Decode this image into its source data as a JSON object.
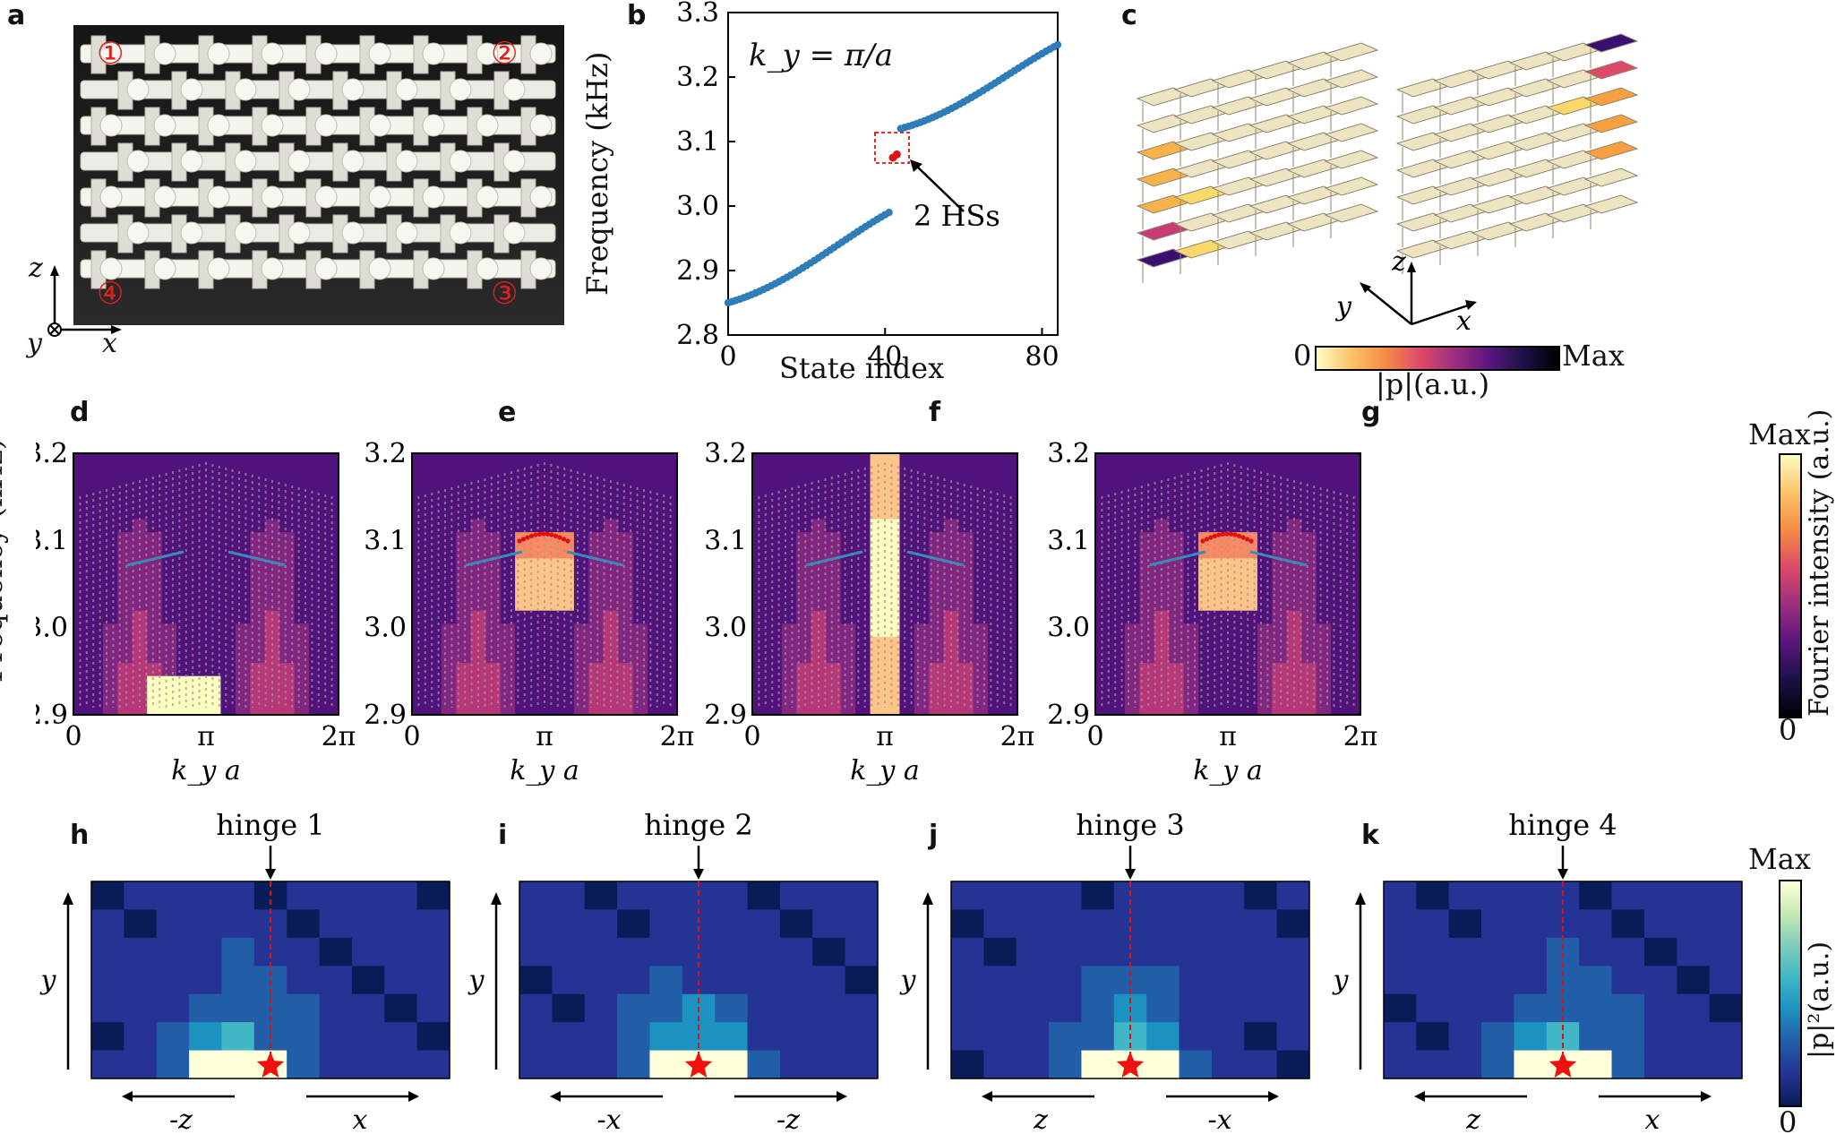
{
  "figure": {
    "panel_labels": [
      "a",
      "b",
      "c",
      "d",
      "e",
      "f",
      "g",
      "h",
      "i",
      "j",
      "k"
    ]
  },
  "panel_a": {
    "corner_markers": [
      "①",
      "②",
      "③",
      "④"
    ],
    "axes": {
      "z": "z",
      "x": "x",
      "y": "y"
    }
  },
  "panel_b": {
    "annotation": "k_y = π/a",
    "callout": "2 HSs",
    "chart_data": {
      "type": "scatter",
      "xlabel": "State index",
      "ylabel": "Frequency (kHz)",
      "xlim": [
        0,
        84
      ],
      "ylim": [
        2.8,
        3.3
      ],
      "xticks": [
        "0",
        "40",
        "80"
      ],
      "yticks": [
        "2.8",
        "2.9",
        "3.0",
        "3.1",
        "3.2",
        "3.3"
      ],
      "series": [
        {
          "color": "#2e7cb8",
          "x_start": 0,
          "x_end": 41,
          "y_start": 2.85,
          "y_end": 2.99
        },
        {
          "color": "#e01010",
          "x": [
            42,
            43
          ],
          "y": [
            3.075,
            3.08
          ]
        },
        {
          "color": "#2e7cb8",
          "x_start": 44,
          "x_end": 84,
          "y_start": 3.12,
          "y_end": 3.25
        }
      ]
    }
  },
  "panel_c": {
    "axes": {
      "z": "z",
      "y": "y",
      "x": "x"
    },
    "colorbar": {
      "min": "0",
      "max": "Max",
      "label": "|p|(a.u.)"
    }
  },
  "dispersion_panels": {
    "ylabel": "Frequency (kHz)",
    "xlabel": "k_y a",
    "yticks": [
      "3.2",
      "3.1",
      "3.0",
      "2.9"
    ],
    "xticks": [
      "0",
      "π",
      "2π"
    ],
    "colorbar": {
      "max": "Max",
      "min": "0",
      "label": "Fourier intensity (a.u.)"
    },
    "chart_data": [
      {
        "type": "heatmap",
        "panel": "d",
        "ylim": [
          2.9,
          3.2
        ],
        "xlim": [
          "0",
          "2π"
        ],
        "red_states": false,
        "bright_band": "low"
      },
      {
        "type": "heatmap",
        "panel": "e",
        "ylim": [
          2.9,
          3.2
        ],
        "xlim": [
          "0",
          "2π"
        ],
        "red_states": true,
        "bright_band": "center"
      },
      {
        "type": "heatmap",
        "panel": "f",
        "ylim": [
          2.9,
          3.2
        ],
        "xlim": [
          "0",
          "2π"
        ],
        "red_states": false,
        "bright_band": "center-column"
      },
      {
        "type": "heatmap",
        "panel": "g",
        "ylim": [
          2.9,
          3.2
        ],
        "xlim": [
          "0",
          "2π"
        ],
        "red_states": true,
        "bright_band": "center"
      }
    ]
  },
  "field_panels": {
    "titles": [
      "hinge 1",
      "hinge 2",
      "hinge 3",
      "hinge 4"
    ],
    "ylabel": "y",
    "bottom_labels": [
      [
        "-z",
        "x"
      ],
      [
        "-x",
        "-z"
      ],
      [
        "z",
        "-x"
      ],
      [
        "z",
        "x"
      ]
    ],
    "colorbar": {
      "max": "Max",
      "min": "0",
      "label": "|p|²(a.u.)"
    }
  }
}
